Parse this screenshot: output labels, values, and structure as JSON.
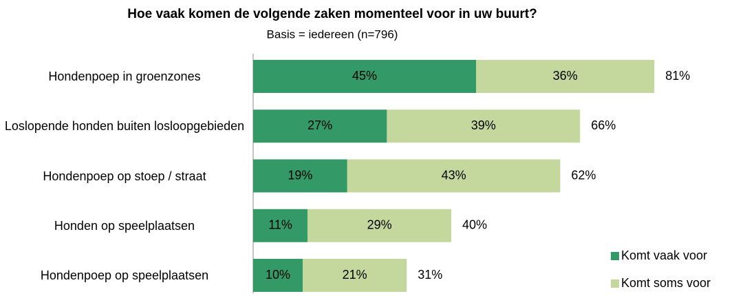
{
  "chart_data": {
    "type": "stacked-barh",
    "title": "Hoe vaak komen de volgende zaken momenteel voor in uw buurt?",
    "subtitle": "Basis = iedereen (n=796)",
    "categories": [
      "Hondenpoep in groenzones",
      "Loslopende honden buiten losloopgebieden",
      "Hondenpoep op stoep / straat",
      "Honden op speelplaatsen",
      "Hondenpoep op speelplaatsen"
    ],
    "series": [
      {
        "name": "Komt vaak voor",
        "color": "#339966",
        "values": [
          45,
          27,
          19,
          11,
          10
        ],
        "value_labels": [
          "45%",
          "27%",
          "19%",
          "11%",
          "10%"
        ]
      },
      {
        "name": "Komt soms voor",
        "color": "#c4d89e",
        "values": [
          36,
          39,
          43,
          29,
          21
        ],
        "value_labels": [
          "36%",
          "39%",
          "43%",
          "29%",
          "21%"
        ]
      }
    ],
    "totals": [
      81,
      66,
      62,
      40,
      31
    ],
    "total_labels": [
      "81%",
      "66%",
      "62%",
      "40%",
      "31%"
    ],
    "xlim": [
      0,
      100
    ],
    "legend": "bottom-right"
  }
}
